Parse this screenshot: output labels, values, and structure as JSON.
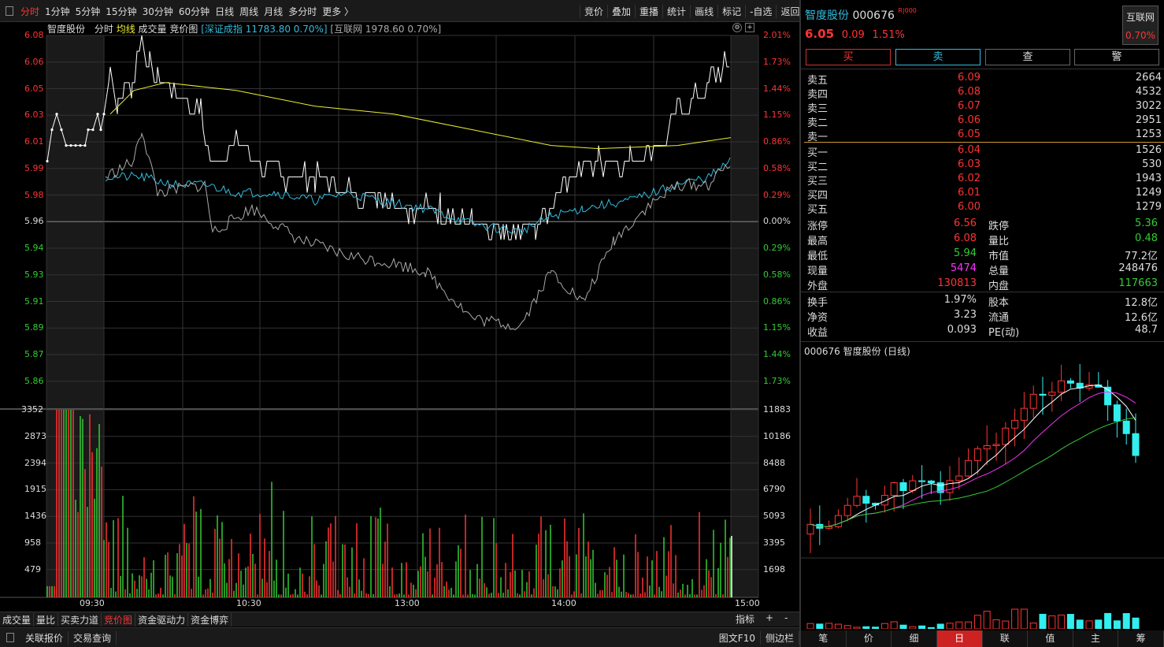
{
  "toolbar": {
    "periods": [
      "分时",
      "1分钟",
      "5分钟",
      "15分钟",
      "30分钟",
      "60分钟",
      "日线",
      "周线",
      "月线",
      "多分时",
      "更多 〉"
    ],
    "active_period": 0,
    "tools": [
      "竞价",
      "叠加",
      "重播",
      "统计",
      "画线",
      "标记",
      "-自选",
      "返回"
    ]
  },
  "chart_header": {
    "name": "智度股份",
    "mode": "分时",
    "avg": "均线",
    "volume": "成交量",
    "auction": "竞价图",
    "index1": "[深证成指 11783.80 0.70%]",
    "index2": "[互联网 1978.60 0.70%]"
  },
  "price_axis": {
    "left": [
      "6.08",
      "6.06",
      "6.05",
      "6.03",
      "6.01",
      "5.99",
      "5.98",
      "5.96",
      "5.94",
      "5.93",
      "5.91",
      "5.89",
      "5.87",
      "5.86"
    ],
    "right": [
      "2.01%",
      "1.73%",
      "1.44%",
      "1.15%",
      "0.86%",
      "0.58%",
      "0.29%",
      "0.00%",
      "0.29%",
      "0.58%",
      "0.86%",
      "1.15%",
      "1.44%",
      "1.73%"
    ]
  },
  "volume_axis": {
    "left": [
      "3352",
      "2873",
      "2394",
      "1915",
      "1436",
      "958",
      "479"
    ],
    "right": [
      "11883",
      "10186",
      "8488",
      "6790",
      "5093",
      "3395",
      "1698"
    ]
  },
  "time_axis": [
    "09:30",
    "10:30",
    "13:00",
    "14:00",
    "15:00"
  ],
  "bottom_tabs": [
    "成交量",
    "量比",
    "买卖力道",
    "竞价图",
    "资金驱动力",
    "资金博弈"
  ],
  "bottom_tabs_active": 3,
  "bottom_tools": {
    "indicator": "指标",
    "plus": "+",
    "minus": "-"
  },
  "statusbar": {
    "left": [
      "关联报价",
      "交易查询"
    ],
    "right": [
      "图文F10",
      "侧边栏"
    ]
  },
  "quote": {
    "name": "智度股份",
    "code": "000676",
    "badge": "R|000",
    "price": "6.05",
    "change": "0.09",
    "pct": "1.51%",
    "sector": "互联网",
    "sector_pct": "0.70%"
  },
  "trade_buttons": [
    "买",
    "卖",
    "查",
    "警"
  ],
  "asks": [
    {
      "label": "卖五",
      "price": "6.09",
      "vol": "2664"
    },
    {
      "label": "卖四",
      "price": "6.08",
      "vol": "4532"
    },
    {
      "label": "卖三",
      "price": "6.07",
      "vol": "3022"
    },
    {
      "label": "卖二",
      "price": "6.06",
      "vol": "2951"
    },
    {
      "label": "卖一",
      "price": "6.05",
      "vol": "1253"
    }
  ],
  "bids": [
    {
      "label": "买一",
      "price": "6.04",
      "vol": "1526"
    },
    {
      "label": "买二",
      "price": "6.03",
      "vol": "530"
    },
    {
      "label": "买三",
      "price": "6.02",
      "vol": "1943"
    },
    {
      "label": "买四",
      "price": "6.01",
      "vol": "1249"
    },
    {
      "label": "买五",
      "price": "6.00",
      "vol": "1279"
    }
  ],
  "stats1": [
    {
      "l1": "涨停",
      "v1": "6.56",
      "c1": "red",
      "l2": "跌停",
      "v2": "5.36",
      "c2": "green"
    },
    {
      "l1": "最高",
      "v1": "6.08",
      "c1": "red",
      "l2": "量比",
      "v2": "0.48",
      "c2": "green"
    },
    {
      "l1": "最低",
      "v1": "5.94",
      "c1": "green",
      "l2": "市值",
      "v2": "77.2亿",
      "c2": "white"
    },
    {
      "l1": "现量",
      "v1": "5474",
      "c1": "mag",
      "l2": "总量",
      "v2": "248476",
      "c2": "white"
    },
    {
      "l1": "外盘",
      "v1": "130813",
      "c1": "red",
      "l2": "内盘",
      "v2": "117663",
      "c2": "green"
    }
  ],
  "stats2": [
    {
      "l1": "换手",
      "v1": "1.97%",
      "l2": "股本",
      "v2": "12.8亿"
    },
    {
      "l1": "净资",
      "v1": "3.23",
      "l2": "流通",
      "v2": "12.6亿"
    },
    {
      "l1": "收益",
      "v1": "0.093",
      "l2": "PE(动)",
      "v2": "48.7"
    }
  ],
  "kline_title": "000676 智度股份 (日线)",
  "kline_tabs": [
    "笔",
    "价",
    "细",
    "日",
    "联",
    "值",
    "主",
    "筹"
  ],
  "kline_active": 3,
  "colors": {
    "up": "#ff3333",
    "down": "#33ddee",
    "avg": "#eeee33",
    "ma10": "#ee33ee",
    "ma20": "#33cc33",
    "grid": "#3a3a3a"
  }
}
